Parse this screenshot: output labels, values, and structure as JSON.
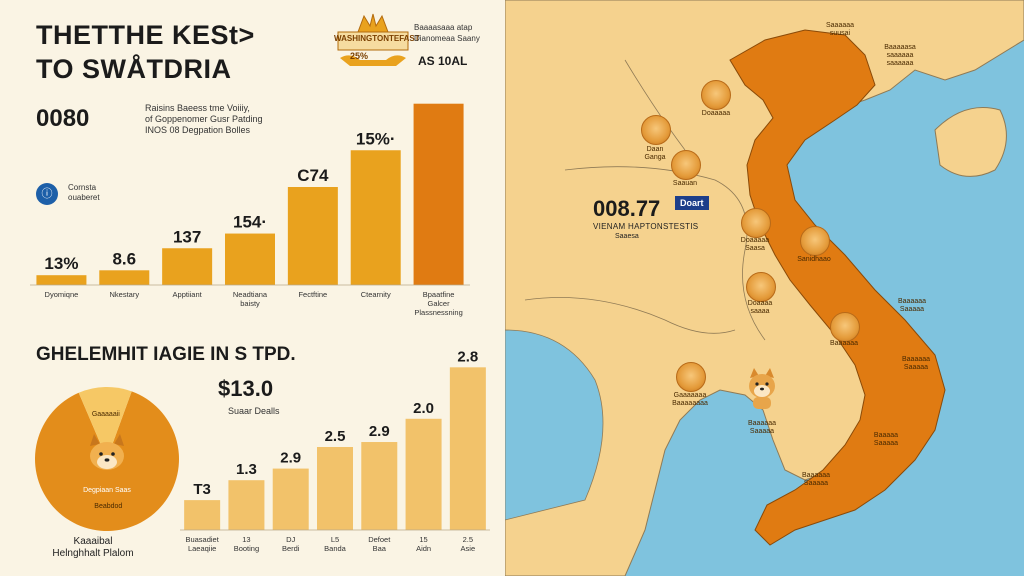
{
  "header": {
    "title_line1": "THETTHE KESt>",
    "title_line2": "TO SWÅTDRIA",
    "crest_text": "WASHINGTONTEFAST",
    "crest_number": "25%",
    "meta_line1": "Baaaasaaa atap",
    "meta_line2": "Dianomeaa Saany",
    "total_label": "AS 10AL"
  },
  "top_panel": {
    "coin_label": "0080",
    "description_line1": "Raisins Baeess tme Voiiiy,",
    "description_line2": "of Goppenomer Gusr Patding",
    "description_line3": "INOS 08 Degpation Bolles",
    "info_icon": "info-icon",
    "info_line1": "Cornsta",
    "info_line2": "ouaberet"
  },
  "chart_data": [
    {
      "type": "bar",
      "categories": [
        "Dyomiqne",
        "Nkestary",
        "Apptiiant",
        "Neadtiana\nbaisty",
        "Fectftine",
        "Ctearnity",
        "Bpaatfine\nGalcer\nPlassnessning"
      ],
      "values": [
        4,
        6,
        15,
        21,
        40,
        55,
        74
      ],
      "value_labels": [
        "13%",
        "8.6",
        "137",
        "154·",
        "C74",
        "15%·",
        ""
      ],
      "color": "#e9a21e",
      "last_color": "#e07b12",
      "ylim": [
        0,
        80
      ]
    },
    {
      "type": "bar",
      "title": "GHELEMHIT IAGIE IN S TPD.",
      "categories": [
        "Buasadiet\nLaeaqiie",
        "13\nBooting",
        "DJ\nBerdi",
        "L5\nBanda",
        "Defoet\nBaa",
        "15\nAidn",
        "2.5\nAsie"
      ],
      "values": [
        18,
        30,
        37,
        50,
        53,
        67,
        98
      ],
      "value_labels": [
        "T3",
        "1.3",
        "2.9",
        "2.5",
        "2.9",
        "2.0",
        "2.8"
      ],
      "color": "#f2c26a",
      "ylim": [
        0,
        100
      ]
    },
    {
      "type": "pie",
      "slices": [
        {
          "label": "Beabdod",
          "value": 88,
          "color": "#e38d1b"
        },
        {
          "label": "Gaaaaaii",
          "value": 12,
          "color": "#f6c865"
        }
      ]
    }
  ],
  "section2": {
    "big_value": "$13.0",
    "big_value_sub": "Suaar Dealls",
    "pie_caption_line1": "Kaaaibal",
    "pie_caption_line2": "Helnghhalt Plalom",
    "pie_center_label": "Degpiaan Saas"
  },
  "map": {
    "value": "008.77",
    "badge": "Doart",
    "caption": "VIENAM HAPTONSTESTIS",
    "caption2": "Saaesa",
    "cities": [
      {
        "name": "Saaaaaa\nsuusai"
      },
      {
        "name": "Baaaaasa\nsaaaaaa\nsaaaaaa"
      },
      {
        "name": "Doaaaaa"
      },
      {
        "name": "Daan\nGanga"
      },
      {
        "name": "Saauan"
      },
      {
        "name": "Doaaaaa\nSaasa"
      },
      {
        "name": "Sanidhaao"
      },
      {
        "name": "Doaaaa\nsaaaa"
      },
      {
        "name": "Baaaaaa"
      },
      {
        "name": "Gaaaaaaa\nBaaaaaaaa"
      },
      {
        "name": "Baaaaaa\nSaaaaa"
      },
      {
        "name": "Baaaaaa\nSaaaaa"
      },
      {
        "name": "Baaaaaa\nSaaaaa"
      },
      {
        "name": "Baaaaa\nSaaaaa"
      },
      {
        "name": "Baaaaaa\nSaaaaa"
      }
    ]
  },
  "colors": {
    "land": "#f5d28e",
    "vietnam": "#e07b12",
    "sea": "#7fc3de",
    "bar": "#e9a21e"
  }
}
